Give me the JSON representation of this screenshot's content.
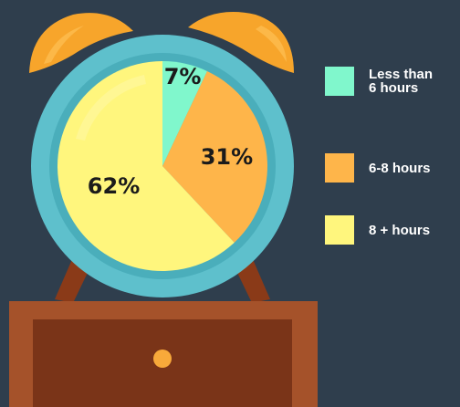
{
  "colors": {
    "background": "#2f3e4d",
    "bell": "#f7a52b",
    "bell_shade": "#e08a16",
    "legs": "#8a3a18",
    "clock_ring": "#5ec0cc",
    "clock_ring_inner": "#4aaebb",
    "nightstand_top": "#a5522a",
    "nightstand_front": "#7a3418",
    "knob": "#f8a93a"
  },
  "chart_data": {
    "type": "pie",
    "start_angle": 0,
    "direction": "clockwise",
    "slices": [
      {
        "label": "Less than\n6 hours",
        "value": 7,
        "display": "7%",
        "color": "#80f7cc"
      },
      {
        "label": "6-8 hours",
        "value": 31,
        "display": "31%",
        "color": "#feb54a"
      },
      {
        "label": "8 + hours",
        "value": 62,
        "display": "62%",
        "color": "#fff67d"
      }
    ]
  }
}
